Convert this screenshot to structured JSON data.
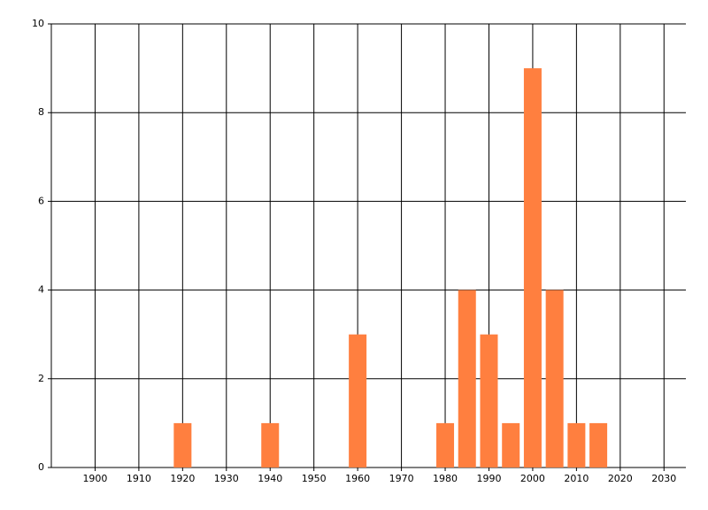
{
  "chart_data": {
    "type": "bar",
    "x": [
      1920,
      1940,
      1960,
      1980,
      1985,
      1990,
      1995,
      2000,
      2005,
      2010,
      2015
    ],
    "values": [
      1,
      1,
      3,
      1,
      4,
      3,
      1,
      9,
      4,
      1,
      1
    ],
    "color": "#ff7f3f",
    "xlim": [
      1890,
      2035
    ],
    "xticks": [
      1900,
      1910,
      1920,
      1930,
      1940,
      1950,
      1960,
      1970,
      1980,
      1990,
      2000,
      2010,
      2020,
      2030
    ],
    "ylim": [
      0,
      10
    ],
    "yticks": [
      0,
      2,
      4,
      6,
      8,
      10
    ],
    "grid": true
  }
}
